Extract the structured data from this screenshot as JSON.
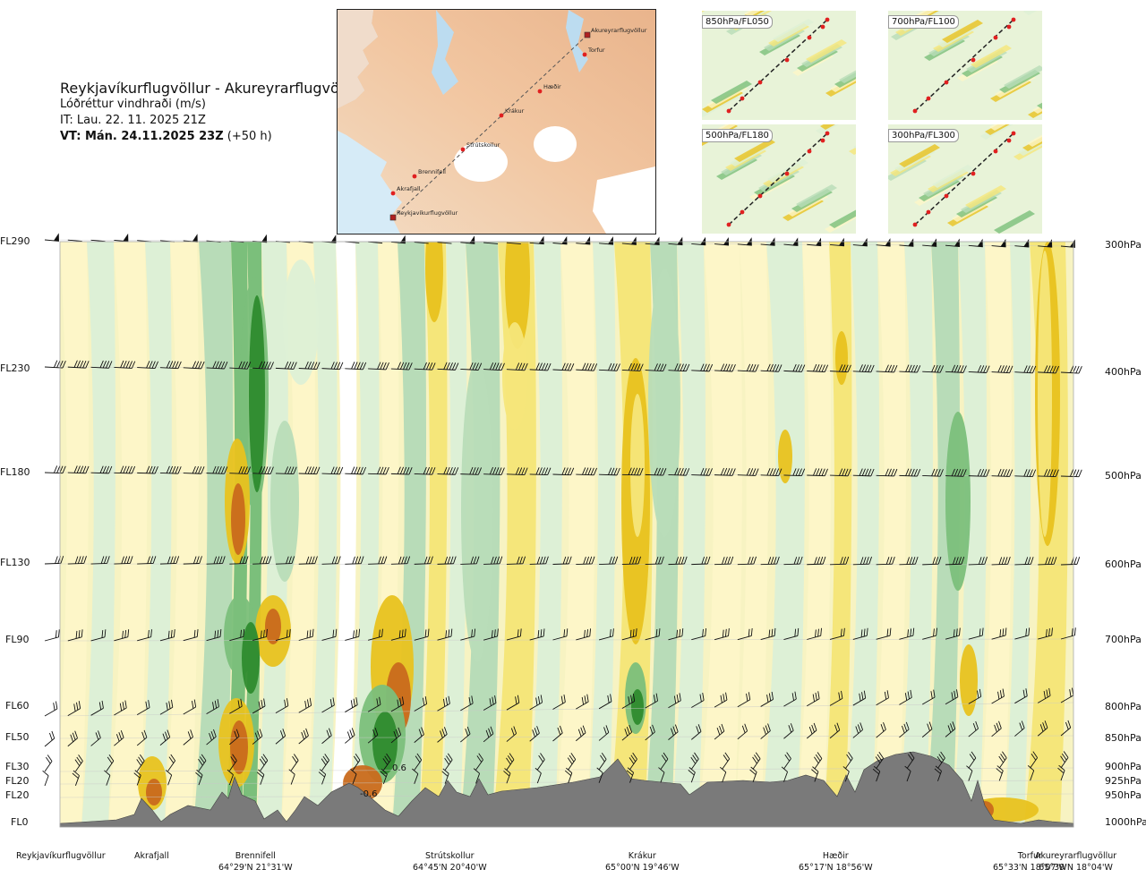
{
  "header": {
    "route": "Reykjavíkurflugvöllur - Akureyrarflugvöllur",
    "parameter": "Lóðréttur vindhraði (m/s)",
    "issue_time": "IT: Lau. 22. 11. 2025 21Z",
    "valid_prefix": "VT: Mán. 24.11.2025 23Z",
    "valid_suffix": "(+50 h)"
  },
  "map": {
    "waypoints": [
      "Reykjavíkurflugvöllur",
      "Akrafjall",
      "Brennifell",
      "Strútskollur",
      "Krákur",
      "Hæðir",
      "Torfur",
      "Akureyrarflugvöllur"
    ]
  },
  "thumbnails": [
    "850hPa/FL050",
    "700hPa/FL100",
    "500hPa/FL180",
    "300hPa/FL300"
  ],
  "chart_data": {
    "type": "heatmap",
    "title": "Reykjavíkurflugvöllur - Akureyrarflugvöllur",
    "subtitle": "Lóðréttur vindhraði (m/s)",
    "y_left_ticks": [
      "FL290",
      "FL230",
      "FL180",
      "FL130",
      "FL90",
      "FL60",
      "FL50",
      "FL30",
      "FL20",
      "FL20",
      "FL0"
    ],
    "y_right_ticks": [
      "300hPa",
      "400hPa",
      "500hPa",
      "600hPa",
      "700hPa",
      "800hPa",
      "850hPa",
      "900hPa",
      "925hPa",
      "950hPa",
      "1000hPa"
    ],
    "x_locations": [
      {
        "name": "Reykjavíkurflugvöllur",
        "coord": ""
      },
      {
        "name": "Akrafjall",
        "coord": ""
      },
      {
        "name": "Brennifell",
        "coord": "64°29'N 21°31'W"
      },
      {
        "name": "Strútskollur",
        "coord": "64°45'N 20°40'W"
      },
      {
        "name": "Krákur",
        "coord": "65°00'N 19°46'W"
      },
      {
        "name": "Hæðir",
        "coord": "65°17'N 18°56'W"
      },
      {
        "name": "Torfur",
        "coord": "65°33'N 18°07'W"
      },
      {
        "name": "Akureyrarflugvöllur",
        "coord": "65°39'N 18°04'W"
      }
    ],
    "annotations": [
      "0.6",
      "-0.6"
    ],
    "colors": {
      "strong_down": "#2e8b2e",
      "mod_down": "#7bbf7b",
      "weak_down": "#b8dcb8",
      "very_weak_down": "#ddf0d6",
      "neutral": "#ffffff",
      "very_weak_up": "#fdf6c8",
      "weak_up": "#f5e67a",
      "mod_up": "#e8c21f",
      "strong_up": "#c96a1c",
      "terrain": "#7a7a7a"
    }
  }
}
